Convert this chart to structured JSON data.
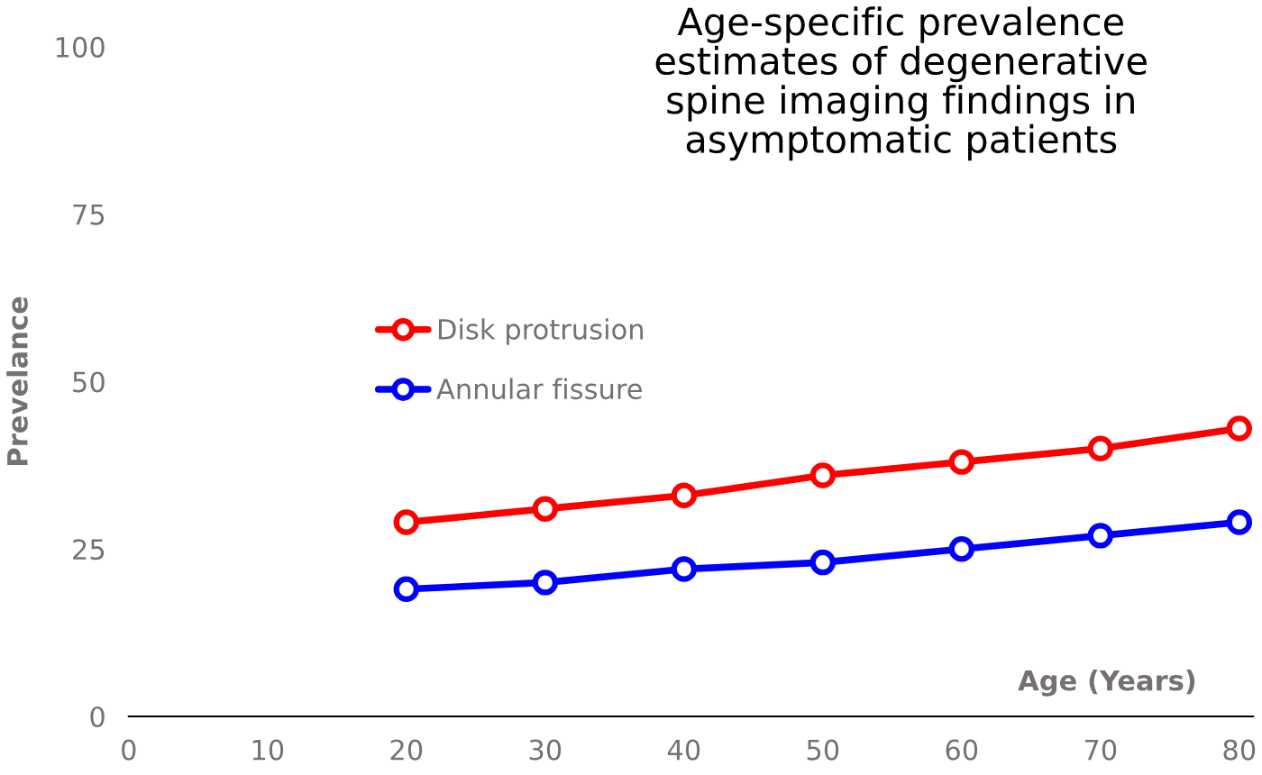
{
  "chart_data": {
    "type": "line",
    "title": "Age-specific prevalence\nestimates of degenerative\nspine imaging findings in\nasymptomatic patients",
    "xlabel": "Age (Years)",
    "ylabel": "Prevelance",
    "x": [
      20,
      30,
      40,
      50,
      60,
      70,
      80
    ],
    "series": [
      {
        "name": "Disk protrusion",
        "color": "#ff0000",
        "values": [
          29,
          31,
          33,
          36,
          38,
          40,
          43
        ]
      },
      {
        "name": "Annular fissure",
        "color": "#0000ff",
        "values": [
          19,
          20,
          22,
          23,
          25,
          27,
          29
        ]
      }
    ],
    "xlim": [
      0,
      81
    ],
    "xticks": [
      0,
      10,
      20,
      30,
      40,
      50,
      60,
      70,
      80
    ],
    "ylim": [
      0,
      100
    ],
    "yticks": [
      0,
      25,
      50,
      75,
      100
    ],
    "grid": false,
    "legend": "left",
    "marker": "circle",
    "line_style": "solid"
  }
}
